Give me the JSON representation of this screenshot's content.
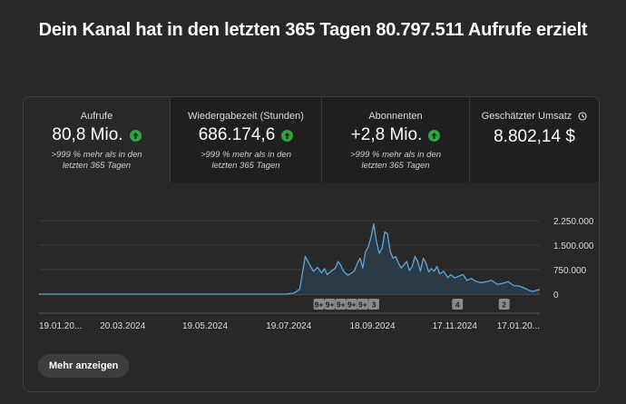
{
  "headline": "Dein Kanal hat in den letzten 365 Tagen 80.797.511 Aufrufe erzielt",
  "metrics": [
    {
      "label": "Aufrufe",
      "value": "80,8 Mio.",
      "note": ">999 % mehr als in den letzten 365 Tagen",
      "trend_icon": "arrow-up-icon"
    },
    {
      "label": "Wiedergabezeit (Stunden)",
      "value": "686.174,6",
      "note": ">999 % mehr als in den letzten 365 Tagen",
      "trend_icon": "arrow-up-icon"
    },
    {
      "label": "Abonnenten",
      "value": "+2,8 Mio.",
      "note": ">999 % mehr als in den letzten 365 Tagen",
      "trend_icon": "arrow-up-icon"
    },
    {
      "label": "Geschätzter Umsatz",
      "value": "8.802,14 $",
      "label_icon": "clock-icon"
    }
  ],
  "colors": {
    "line": "#5ba8d8",
    "fill": "#2c3a46",
    "accent_up": "#2ba640",
    "marker_bg": "#8a8a8a"
  },
  "chart_data": {
    "type": "area",
    "title": "",
    "xlabel": "",
    "ylabel": "",
    "x_tick_labels": [
      "19.01.20...",
      "20.03.2024",
      "19.05.2024",
      "19.07.2024",
      "18.09.2024",
      "17.11.2024",
      "17.01.20..."
    ],
    "x_tick_days": [
      0,
      61,
      121,
      182,
      243,
      303,
      364
    ],
    "y_ticks": [
      0,
      750000,
      1500000,
      2250000
    ],
    "y_tick_labels": [
      "0",
      "750.000",
      "1.500.000",
      "2.250.000"
    ],
    "ylim": [
      0,
      2250000
    ],
    "x_range_days": [
      0,
      365
    ],
    "grid": true,
    "series": [
      {
        "x_days": [
          0,
          170,
          180,
          186,
          190,
          194,
          198,
          200,
          203,
          206,
          208,
          210,
          213,
          216,
          218,
          220,
          222,
          225,
          228,
          230,
          232,
          234,
          236,
          238,
          240,
          242,
          244,
          246,
          248,
          250,
          252,
          254,
          256,
          258,
          260,
          262,
          264,
          266,
          268,
          270,
          272,
          274,
          276,
          278,
          280,
          282,
          284,
          286,
          288,
          290,
          292,
          295,
          298,
          300,
          303,
          306,
          309,
          312,
          315,
          318,
          322,
          326,
          330,
          334,
          338,
          342,
          346,
          350,
          354,
          357,
          360,
          365
        ],
        "values": [
          0,
          0,
          0,
          40000,
          150000,
          1150000,
          850000,
          700000,
          820000,
          650000,
          780000,
          600000,
          700000,
          800000,
          1000000,
          880000,
          700000,
          580000,
          650000,
          720000,
          950000,
          1100000,
          800000,
          1300000,
          1450000,
          1750000,
          2150000,
          1600000,
          1250000,
          1400000,
          1900000,
          1850000,
          1300000,
          1100000,
          1150000,
          950000,
          800000,
          900000,
          1000000,
          720000,
          850000,
          1150000,
          1000000,
          700000,
          1100000,
          950000,
          680000,
          780000,
          700000,
          850000,
          620000,
          700000,
          500000,
          600000,
          500000,
          550000,
          600000,
          420000,
          480000,
          400000,
          350000,
          380000,
          420000,
          300000,
          330000,
          380000,
          260000,
          250000,
          180000,
          120000,
          80000,
          150000
        ]
      }
    ],
    "markers": [
      {
        "day": 204,
        "label": "9+"
      },
      {
        "day": 212,
        "label": "9+"
      },
      {
        "day": 220,
        "label": "9+"
      },
      {
        "day": 228,
        "label": "9+"
      },
      {
        "day": 236,
        "label": "9+"
      },
      {
        "day": 244,
        "label": "3"
      },
      {
        "day": 305,
        "label": "4"
      },
      {
        "day": 339,
        "label": "2"
      }
    ]
  },
  "buttons": {
    "more": "Mehr anzeigen"
  }
}
